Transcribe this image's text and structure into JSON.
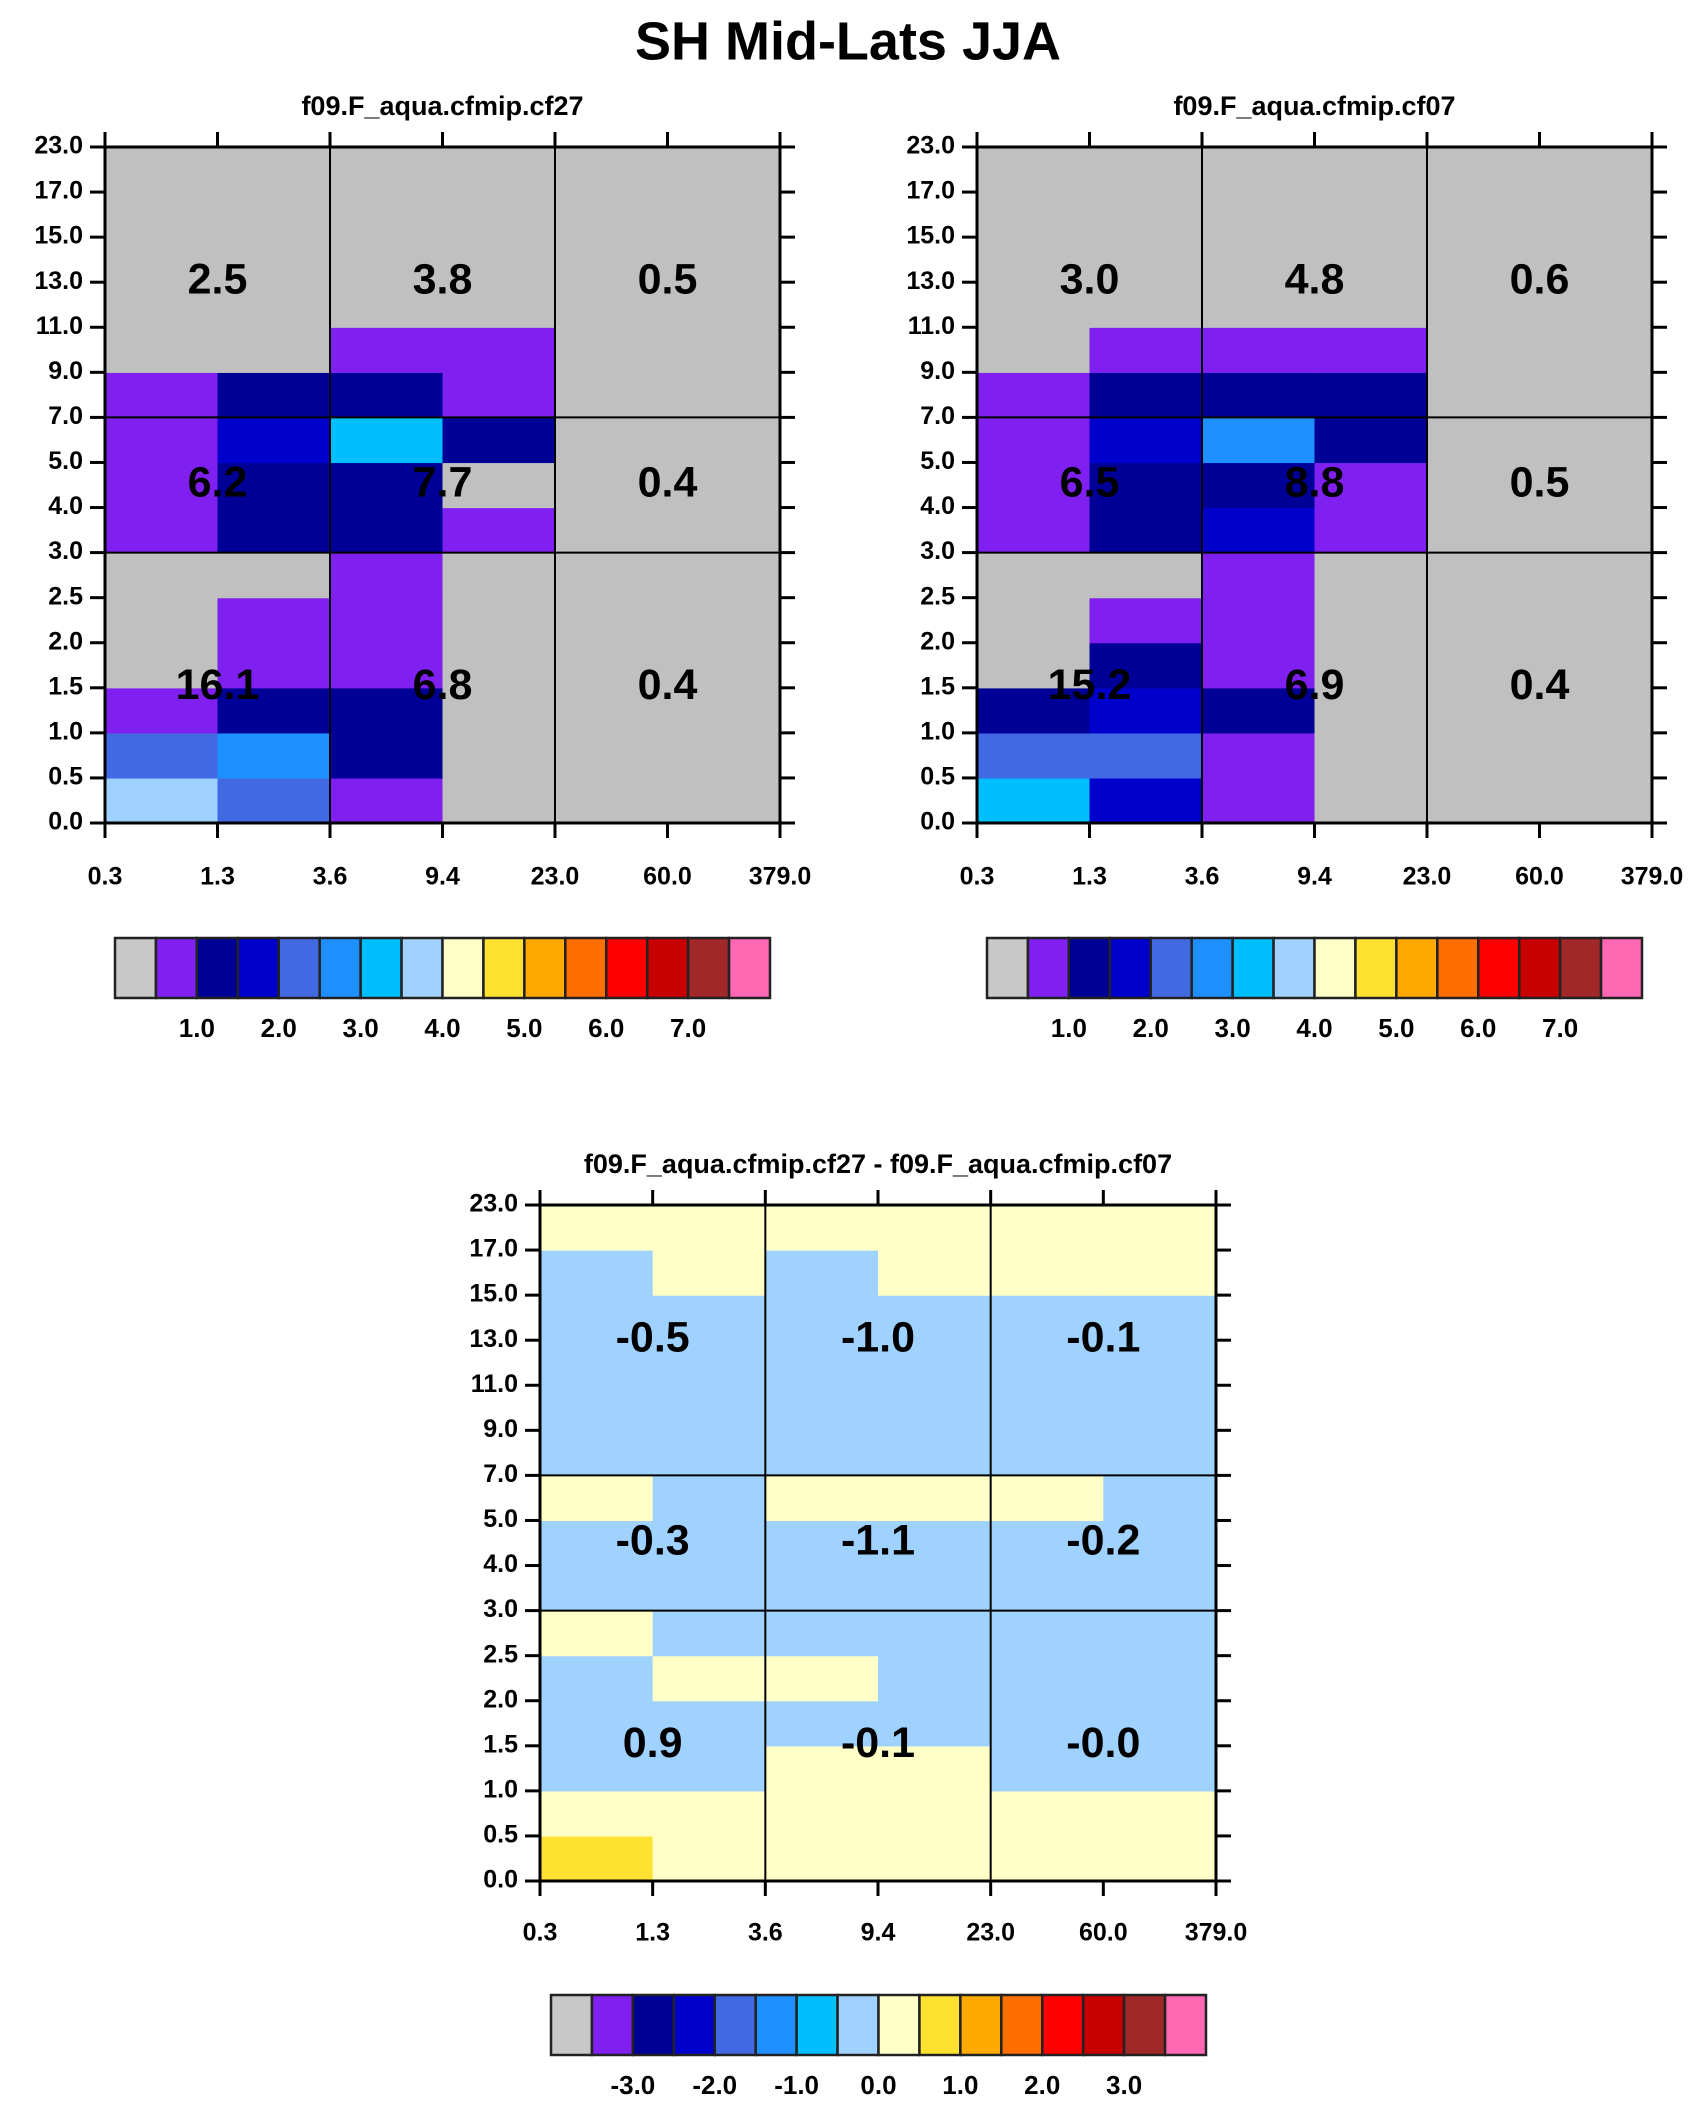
{
  "title": "SH Mid-Lats JJA",
  "palette": [
    "#c0c0c0",
    "#8020f0",
    "#000096",
    "#0000cd",
    "#4169e1",
    "#1e90ff",
    "#00bfff",
    "#a0d2ff",
    "#ffffc8",
    "#ffe132",
    "#ffaa00",
    "#ff6e00",
    "#ff0000",
    "#c80000",
    "#a02828",
    "#ff69b4"
  ],
  "legend_palette": [
    "#c8c8c8",
    "#8020f0",
    "#000096",
    "#0000cd",
    "#4169e1",
    "#1e90ff",
    "#00bfff",
    "#a0d2ff",
    "#ffffc8",
    "#ffe132",
    "#ffaa00",
    "#ff6e00",
    "#ff0000",
    "#c80000",
    "#a02828",
    "#ff69b4"
  ],
  "chart_data": [
    {
      "type": "heatmap",
      "title": "f09.F_aqua.cfmip.cf27",
      "x_ticks": [
        "0.3",
        "1.3",
        "3.6",
        "9.4",
        "23.0",
        "60.0",
        "379.0"
      ],
      "y_ticks": [
        "0.0",
        "0.5",
        "1.0",
        "1.5",
        "2.0",
        "2.5",
        "3.0",
        "4.0",
        "5.0",
        "7.0",
        "9.0",
        "11.0",
        "13.0",
        "15.0",
        "17.0",
        "23.0"
      ],
      "cells_color_index_bottom_to_top": [
        [
          7,
          4,
          1,
          0,
          0,
          0
        ],
        [
          4,
          5,
          2,
          0,
          0,
          0
        ],
        [
          1,
          2,
          2,
          0,
          0,
          0
        ],
        [
          0,
          1,
          1,
          0,
          0,
          0
        ],
        [
          0,
          1,
          1,
          0,
          0,
          0
        ],
        [
          0,
          0,
          1,
          0,
          0,
          0
        ],
        [
          1,
          2,
          2,
          1,
          0,
          0
        ],
        [
          1,
          2,
          2,
          0,
          0,
          0
        ],
        [
          1,
          3,
          6,
          2,
          0,
          0
        ],
        [
          1,
          2,
          2,
          1,
          0,
          0
        ],
        [
          0,
          0,
          1,
          1,
          0,
          0
        ],
        [
          0,
          0,
          0,
          0,
          0,
          0
        ],
        [
          0,
          0,
          0,
          0,
          0,
          0
        ],
        [
          0,
          0,
          0,
          0,
          0,
          0
        ],
        [
          0,
          0,
          0,
          0,
          0,
          0
        ]
      ],
      "group_values_bottom_to_top": [
        [
          "16.1",
          "6.8",
          "0.4"
        ],
        [
          "6.2",
          "7.7",
          "0.4"
        ],
        [
          "2.5",
          "3.8",
          "0.5"
        ]
      ],
      "legend_labels": [
        "1.0",
        "2.0",
        "3.0",
        "4.0",
        "5.0",
        "6.0",
        "7.0"
      ]
    },
    {
      "type": "heatmap",
      "title": "f09.F_aqua.cfmip.cf07",
      "x_ticks": [
        "0.3",
        "1.3",
        "3.6",
        "9.4",
        "23.0",
        "60.0",
        "379.0"
      ],
      "y_ticks": [
        "0.0",
        "0.5",
        "1.0",
        "1.5",
        "2.0",
        "2.5",
        "3.0",
        "4.0",
        "5.0",
        "7.0",
        "9.0",
        "11.0",
        "13.0",
        "15.0",
        "17.0",
        "23.0"
      ],
      "cells_color_index_bottom_to_top": [
        [
          6,
          3,
          1,
          0,
          0,
          0
        ],
        [
          4,
          4,
          1,
          0,
          0,
          0
        ],
        [
          2,
          3,
          2,
          0,
          0,
          0
        ],
        [
          0,
          2,
          1,
          0,
          0,
          0
        ],
        [
          0,
          1,
          1,
          0,
          0,
          0
        ],
        [
          0,
          0,
          1,
          0,
          0,
          0
        ],
        [
          1,
          2,
          3,
          1,
          0,
          0
        ],
        [
          1,
          2,
          2,
          1,
          0,
          0
        ],
        [
          1,
          3,
          5,
          2,
          0,
          0
        ],
        [
          1,
          2,
          2,
          2,
          0,
          0
        ],
        [
          0,
          1,
          1,
          1,
          0,
          0
        ],
        [
          0,
          0,
          0,
          0,
          0,
          0
        ],
        [
          0,
          0,
          0,
          0,
          0,
          0
        ],
        [
          0,
          0,
          0,
          0,
          0,
          0
        ],
        [
          0,
          0,
          0,
          0,
          0,
          0
        ]
      ],
      "group_values_bottom_to_top": [
        [
          "15.2",
          "6.9",
          "0.4"
        ],
        [
          "6.5",
          "8.8",
          "0.5"
        ],
        [
          "3.0",
          "4.8",
          "0.6"
        ]
      ],
      "legend_labels": [
        "1.0",
        "2.0",
        "3.0",
        "4.0",
        "5.0",
        "6.0",
        "7.0"
      ]
    },
    {
      "type": "heatmap",
      "title": "f09.F_aqua.cfmip.cf27 - f09.F_aqua.cfmip.cf07",
      "x_ticks": [
        "0.3",
        "1.3",
        "3.6",
        "9.4",
        "23.0",
        "60.0",
        "379.0"
      ],
      "y_ticks": [
        "0.0",
        "0.5",
        "1.0",
        "1.5",
        "2.0",
        "2.5",
        "3.0",
        "4.0",
        "5.0",
        "7.0",
        "9.0",
        "11.0",
        "13.0",
        "15.0",
        "17.0",
        "23.0"
      ],
      "cells_color_index_bottom_to_top": [
        [
          9,
          8,
          8,
          8,
          8,
          8
        ],
        [
          8,
          8,
          8,
          8,
          8,
          8
        ],
        [
          7,
          7,
          8,
          8,
          7,
          7
        ],
        [
          7,
          7,
          7,
          7,
          7,
          7
        ],
        [
          7,
          8,
          8,
          7,
          7,
          7
        ],
        [
          8,
          7,
          7,
          7,
          7,
          7
        ],
        [
          7,
          7,
          7,
          7,
          7,
          7
        ],
        [
          7,
          7,
          7,
          7,
          7,
          7
        ],
        [
          8,
          7,
          8,
          8,
          8,
          7
        ],
        [
          7,
          7,
          7,
          7,
          7,
          7
        ],
        [
          7,
          7,
          7,
          7,
          7,
          7
        ],
        [
          7,
          7,
          7,
          7,
          7,
          7
        ],
        [
          7,
          7,
          7,
          7,
          7,
          7
        ],
        [
          7,
          8,
          7,
          8,
          8,
          8
        ],
        [
          8,
          8,
          8,
          8,
          8,
          8
        ]
      ],
      "group_values_bottom_to_top": [
        [
          "0.9",
          "-0.1",
          "-0.0"
        ],
        [
          "-0.3",
          "-1.1",
          "-0.2"
        ],
        [
          "-0.5",
          "-1.0",
          "-0.1"
        ]
      ],
      "legend_labels": [
        "-3.0",
        "-2.0",
        "-1.0",
        "0.0",
        "1.0",
        "2.0",
        "3.0"
      ]
    }
  ]
}
